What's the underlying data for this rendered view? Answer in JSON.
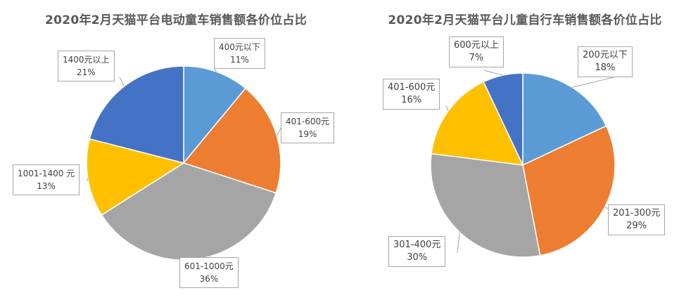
{
  "chart_data": [
    {
      "type": "pie",
      "title": "2020年2月天猫平台电动童车销售额各价位占比",
      "slices": [
        {
          "label": "400元以下",
          "value": 11,
          "value_label": "11%",
          "color": "#5b9bd5"
        },
        {
          "label": "401-600元",
          "value": 19,
          "value_label": "19%",
          "color": "#ed7d31"
        },
        {
          "label": "601-1000元",
          "value": 36,
          "value_label": "36%",
          "color": "#a5a5a5"
        },
        {
          "label": "1001-1400 元",
          "value": 13,
          "value_label": "13%",
          "color": "#ffc000"
        },
        {
          "label": "1400元以上",
          "value": 21,
          "value_label": "21%",
          "color": "#4472c4"
        }
      ]
    },
    {
      "type": "pie",
      "title": "2020年2月天猫平台儿童自行车销售额各价位占比",
      "slices": [
        {
          "label": "200元以下",
          "value": 18,
          "value_label": "18%",
          "color": "#5b9bd5"
        },
        {
          "label": "201-300元",
          "value": 29,
          "value_label": "29%",
          "color": "#ed7d31"
        },
        {
          "label": "301-400元",
          "value": 30,
          "value_label": "30%",
          "color": "#a5a5a5"
        },
        {
          "label": "401-600元",
          "value": 16,
          "value_label": "16%",
          "color": "#ffc000"
        },
        {
          "label": "600元以上",
          "value": 7,
          "value_label": "7%",
          "color": "#4472c4"
        }
      ]
    }
  ]
}
